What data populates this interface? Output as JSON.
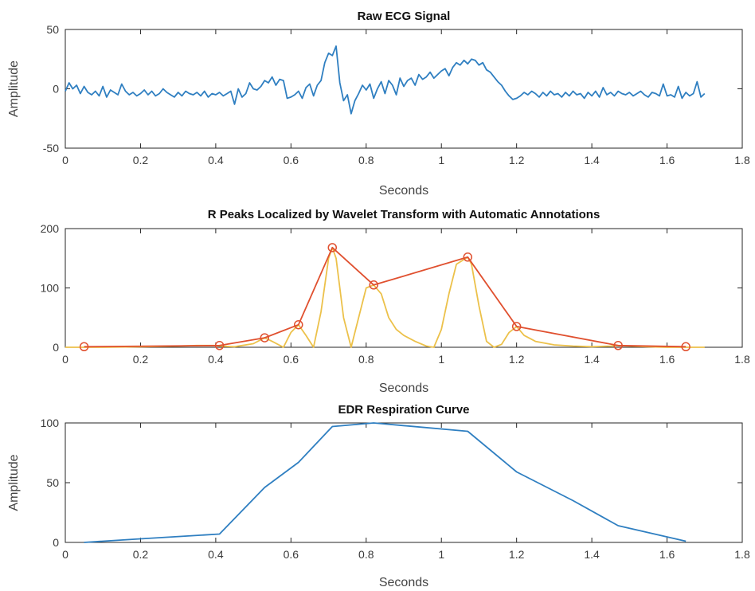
{
  "chart_data": [
    {
      "type": "line",
      "title": "Raw ECG Signal",
      "xlabel": "Seconds",
      "ylabel": "Amplitude",
      "xlim": [
        0,
        1.8
      ],
      "ylim": [
        -50,
        50
      ],
      "xticks": [
        "0",
        "0.2",
        "0.4",
        "0.6",
        "0.8",
        "1",
        "1.2",
        "1.4",
        "1.6",
        "1.8"
      ],
      "yticks": [
        "-50",
        "0",
        "50"
      ],
      "grid": false,
      "series": [
        {
          "color": "#2f7fc1",
          "x": [
            0,
            0.01,
            0.02,
            0.03,
            0.04,
            0.05,
            0.06,
            0.07,
            0.08,
            0.09,
            0.1,
            0.11,
            0.12,
            0.13,
            0.14,
            0.15,
            0.16,
            0.17,
            0.18,
            0.19,
            0.2,
            0.21,
            0.22,
            0.23,
            0.24,
            0.25,
            0.26,
            0.27,
            0.28,
            0.29,
            0.3,
            0.31,
            0.32,
            0.33,
            0.34,
            0.35,
            0.36,
            0.37,
            0.38,
            0.39,
            0.4,
            0.41,
            0.42,
            0.43,
            0.44,
            0.45,
            0.46,
            0.47,
            0.48,
            0.49,
            0.5,
            0.51,
            0.52,
            0.53,
            0.54,
            0.55,
            0.56,
            0.57,
            0.58,
            0.59,
            0.6,
            0.61,
            0.62,
            0.63,
            0.64,
            0.65,
            0.66,
            0.67,
            0.68,
            0.69,
            0.7,
            0.71,
            0.72,
            0.73,
            0.74,
            0.75,
            0.76,
            0.77,
            0.78,
            0.79,
            0.8,
            0.81,
            0.82,
            0.83,
            0.84,
            0.85,
            0.86,
            0.87,
            0.88,
            0.89,
            0.9,
            0.91,
            0.92,
            0.93,
            0.94,
            0.95,
            0.96,
            0.97,
            0.98,
            0.99,
            1.0,
            1.01,
            1.02,
            1.03,
            1.04,
            1.05,
            1.06,
            1.07,
            1.08,
            1.09,
            1.1,
            1.11,
            1.12,
            1.13,
            1.14,
            1.15,
            1.16,
            1.17,
            1.18,
            1.19,
            1.2,
            1.21,
            1.22,
            1.23,
            1.24,
            1.25,
            1.26,
            1.27,
            1.28,
            1.29,
            1.3,
            1.31,
            1.32,
            1.33,
            1.34,
            1.35,
            1.36,
            1.37,
            1.38,
            1.39,
            1.4,
            1.41,
            1.42,
            1.43,
            1.44,
            1.45,
            1.46,
            1.47,
            1.48,
            1.49,
            1.5,
            1.51,
            1.52,
            1.53,
            1.54,
            1.55,
            1.56,
            1.57,
            1.58,
            1.59,
            1.6,
            1.61,
            1.62,
            1.63,
            1.64,
            1.65,
            1.66,
            1.67,
            1.68,
            1.69,
            1.7
          ],
          "y": [
            -2,
            5,
            0,
            3,
            -4,
            2,
            -3,
            -5,
            -2,
            -6,
            2,
            -7,
            -1,
            -3,
            -5,
            4,
            -2,
            -5,
            -3,
            -6,
            -4,
            -1,
            -5,
            -2,
            -6,
            -4,
            0,
            -3,
            -5,
            -7,
            -3,
            -6,
            -2,
            -4,
            -5,
            -3,
            -6,
            -2,
            -7,
            -4,
            -5,
            -3,
            -6,
            -4,
            -2,
            -13,
            0,
            -7,
            -4,
            5,
            0,
            -1,
            2,
            7,
            5,
            10,
            3,
            8,
            7,
            -8,
            -7,
            -5,
            -2,
            -8,
            1,
            4,
            -6,
            3,
            7,
            22,
            30,
            28,
            36,
            5,
            -10,
            -5,
            -21,
            -10,
            -4,
            3,
            -1,
            4,
            -8,
            0,
            6,
            -4,
            7,
            3,
            -5,
            9,
            2,
            7,
            9,
            3,
            12,
            8,
            10,
            14,
            9,
            12,
            15,
            17,
            11,
            18,
            22,
            20,
            24,
            21,
            25,
            24,
            20,
            22,
            16,
            14,
            10,
            6,
            3,
            -2,
            -6,
            -9,
            -8,
            -6,
            -3,
            -5,
            -2,
            -4,
            -7,
            -3,
            -6,
            -2,
            -5,
            -4,
            -7,
            -3,
            -6,
            -2,
            -5,
            -4,
            -8,
            -3,
            -6,
            -2,
            -7,
            1,
            -5,
            -3,
            -6,
            -2,
            -4,
            -5,
            -3,
            -6,
            -4,
            -2,
            -5,
            -7,
            -3,
            -4,
            -6,
            4,
            -6,
            -5,
            -7,
            2,
            -8,
            -3,
            -6,
            -4,
            6,
            -7,
            -4
          ]
        }
      ]
    },
    {
      "type": "line",
      "title": "R Peaks Localized by Wavelet Transform with Automatic Annotations",
      "xlabel": "Seconds",
      "ylabel": "",
      "xlim": [
        0,
        1.8
      ],
      "ylim": [
        0,
        200
      ],
      "xticks": [
        "0",
        "0.2",
        "0.4",
        "0.6",
        "0.8",
        "1",
        "1.2",
        "1.4",
        "1.6",
        "1.8"
      ],
      "yticks": [
        "0",
        "100",
        "200"
      ],
      "grid": false,
      "series": [
        {
          "color": "#ecc14a",
          "x": [
            0,
            0.05,
            0.1,
            0.2,
            0.3,
            0.35,
            0.4,
            0.41,
            0.45,
            0.5,
            0.53,
            0.55,
            0.58,
            0.6,
            0.62,
            0.64,
            0.66,
            0.68,
            0.7,
            0.71,
            0.72,
            0.74,
            0.76,
            0.78,
            0.8,
            0.82,
            0.84,
            0.86,
            0.88,
            0.9,
            0.93,
            0.96,
            0.98,
            1.0,
            1.02,
            1.04,
            1.06,
            1.07,
            1.08,
            1.1,
            1.12,
            1.14,
            1.16,
            1.18,
            1.2,
            1.22,
            1.25,
            1.3,
            1.35,
            1.4,
            1.45,
            1.47,
            1.5,
            1.55,
            1.6,
            1.65,
            1.7
          ],
          "y": [
            0,
            0,
            0,
            1,
            2,
            3,
            3,
            2,
            1,
            6,
            16,
            10,
            0,
            25,
            38,
            20,
            0,
            60,
            150,
            168,
            150,
            50,
            0,
            50,
            100,
            105,
            90,
            50,
            30,
            20,
            10,
            2,
            0,
            30,
            90,
            140,
            148,
            152,
            140,
            70,
            10,
            0,
            5,
            25,
            35,
            20,
            10,
            4,
            2,
            1,
            2,
            3,
            2,
            1,
            0,
            0,
            0
          ]
        },
        {
          "color": "#e0502f",
          "markers": "circle",
          "x": [
            0.05,
            0.41,
            0.53,
            0.62,
            0.71,
            0.82,
            1.07,
            1.2,
            1.47,
            1.65
          ],
          "y": [
            1,
            3,
            16,
            38,
            168,
            105,
            152,
            35,
            3,
            1
          ]
        }
      ]
    },
    {
      "type": "line",
      "title": "EDR Respiration Curve",
      "xlabel": "Seconds",
      "ylabel": "Amplitude",
      "xlim": [
        0,
        1.8
      ],
      "ylim": [
        0,
        100
      ],
      "xticks": [
        "0",
        "0.2",
        "0.4",
        "0.6",
        "0.8",
        "1",
        "1.2",
        "1.4",
        "1.6",
        "1.8"
      ],
      "yticks": [
        "0",
        "50",
        "100"
      ],
      "grid": false,
      "series": [
        {
          "color": "#2f7fc1",
          "x": [
            0.05,
            0.2,
            0.41,
            0.53,
            0.62,
            0.71,
            0.82,
            1.07,
            1.2,
            1.35,
            1.47,
            1.65
          ],
          "y": [
            0,
            3,
            7,
            46,
            67,
            97,
            100,
            93,
            59,
            35,
            14,
            1
          ]
        }
      ]
    }
  ]
}
